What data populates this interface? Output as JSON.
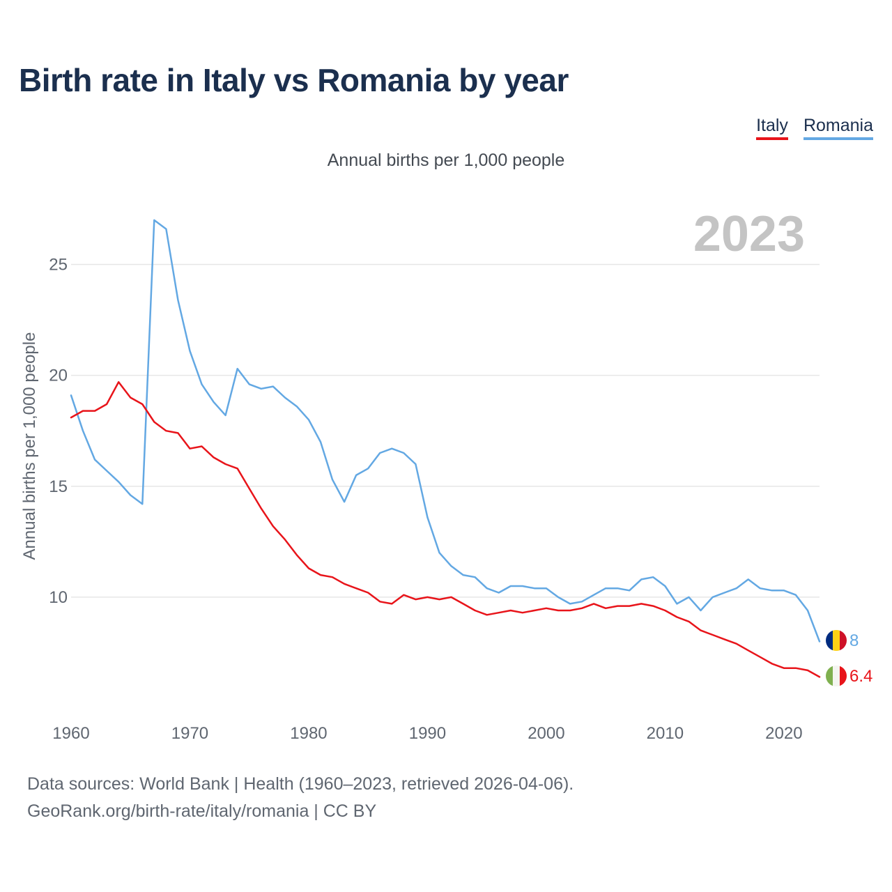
{
  "header": {
    "title": "Birth rate in Italy vs Romania by year",
    "subtitle": "Annual births per 1,000 people"
  },
  "legend": [
    {
      "label": "Italy",
      "color": "#e8141a"
    },
    {
      "label": "Romania",
      "color": "#63a8e3"
    }
  ],
  "footer": {
    "line1": "Data sources: World Bank | Health (1960–2023, retrieved 2026-04-06).",
    "line2": "GeoRank.org/birth-rate/italy/romania | CC BY"
  },
  "chart_data": {
    "type": "line",
    "title": "Birth rate in Italy vs Romania by year",
    "subtitle": "Annual births per 1,000 people",
    "ylabel": "Annual births per 1,000 people",
    "xlabel": "",
    "year_label": "2023",
    "xlim": [
      1960,
      2023
    ],
    "ylim": [
      5,
      27.5
    ],
    "xticks": [
      1960,
      1970,
      1980,
      1990,
      2000,
      2010,
      2020
    ],
    "yticks": [
      10,
      15,
      20,
      25
    ],
    "grid": true,
    "legend_position": "top-right",
    "x": [
      1960,
      1961,
      1962,
      1963,
      1964,
      1965,
      1966,
      1967,
      1968,
      1969,
      1970,
      1971,
      1972,
      1973,
      1974,
      1975,
      1976,
      1977,
      1978,
      1979,
      1980,
      1981,
      1982,
      1983,
      1984,
      1985,
      1986,
      1987,
      1988,
      1989,
      1990,
      1991,
      1992,
      1993,
      1994,
      1995,
      1996,
      1997,
      1998,
      1999,
      2000,
      2001,
      2002,
      2003,
      2004,
      2005,
      2006,
      2007,
      2008,
      2009,
      2010,
      2011,
      2012,
      2013,
      2014,
      2015,
      2016,
      2017,
      2018,
      2019,
      2020,
      2021,
      2022,
      2023
    ],
    "series": [
      {
        "name": "Italy",
        "color": "#e8141a",
        "end_label": "6.4",
        "values": [
          18.1,
          18.4,
          18.4,
          18.7,
          19.7,
          19.0,
          18.7,
          17.9,
          17.5,
          17.4,
          16.7,
          16.8,
          16.3,
          16.0,
          15.8,
          14.9,
          14.0,
          13.2,
          12.6,
          11.9,
          11.3,
          11.0,
          10.9,
          10.6,
          10.4,
          10.2,
          9.8,
          9.7,
          10.1,
          9.9,
          10.0,
          9.9,
          10.0,
          9.7,
          9.4,
          9.2,
          9.3,
          9.4,
          9.3,
          9.4,
          9.5,
          9.4,
          9.4,
          9.5,
          9.7,
          9.5,
          9.6,
          9.6,
          9.7,
          9.6,
          9.4,
          9.1,
          8.9,
          8.5,
          8.3,
          8.1,
          7.9,
          7.6,
          7.3,
          7.0,
          6.8,
          6.8,
          6.7,
          6.4
        ]
      },
      {
        "name": "Romania",
        "color": "#63a8e3",
        "end_label": "8",
        "values": [
          19.1,
          17.5,
          16.2,
          15.7,
          15.2,
          14.6,
          14.2,
          27.0,
          26.6,
          23.4,
          21.1,
          19.6,
          18.8,
          18.2,
          20.3,
          19.6,
          19.4,
          19.5,
          19.0,
          18.6,
          18.0,
          17.0,
          15.3,
          14.3,
          15.5,
          15.8,
          16.5,
          16.7,
          16.5,
          16.0,
          13.6,
          12.0,
          11.4,
          11.0,
          10.9,
          10.4,
          10.2,
          10.5,
          10.5,
          10.4,
          10.4,
          10.0,
          9.7,
          9.8,
          10.1,
          10.4,
          10.4,
          10.3,
          10.8,
          10.9,
          10.5,
          9.7,
          10.0,
          9.4,
          10.0,
          10.2,
          10.4,
          10.8,
          10.4,
          10.3,
          10.3,
          10.1,
          9.4,
          8.0
        ]
      }
    ]
  }
}
